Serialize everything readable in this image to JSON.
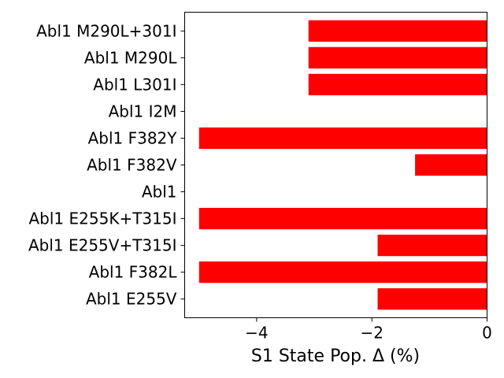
{
  "chart_data": {
    "type": "bar",
    "orientation": "horizontal",
    "categories": [
      "Abl1 E255V",
      "Abl1 F382L",
      "Abl1 E255V+T315I",
      "Abl1 E255K+T315I",
      "Abl1",
      "Abl1 F382V",
      "Abl1 F382Y",
      "Abl1 I2M",
      "Abl1 L301I",
      "Abl1 M290L",
      "Abl1 M290L+301I"
    ],
    "values": [
      -1.9,
      -5.0,
      -1.9,
      -5.0,
      0,
      -1.25,
      -5.0,
      0,
      -3.1,
      -3.1,
      -3.1
    ],
    "title": "",
    "xlabel": "S1 State Pop. Δ (%)",
    "ylabel": "",
    "xlim": [
      -5.25,
      0
    ],
    "xticks": [
      -4,
      -2,
      0
    ],
    "xtick_labels": [
      "−4",
      "−2",
      "0"
    ],
    "bar_color": "#ff0000",
    "grid": false,
    "legend": "none"
  }
}
